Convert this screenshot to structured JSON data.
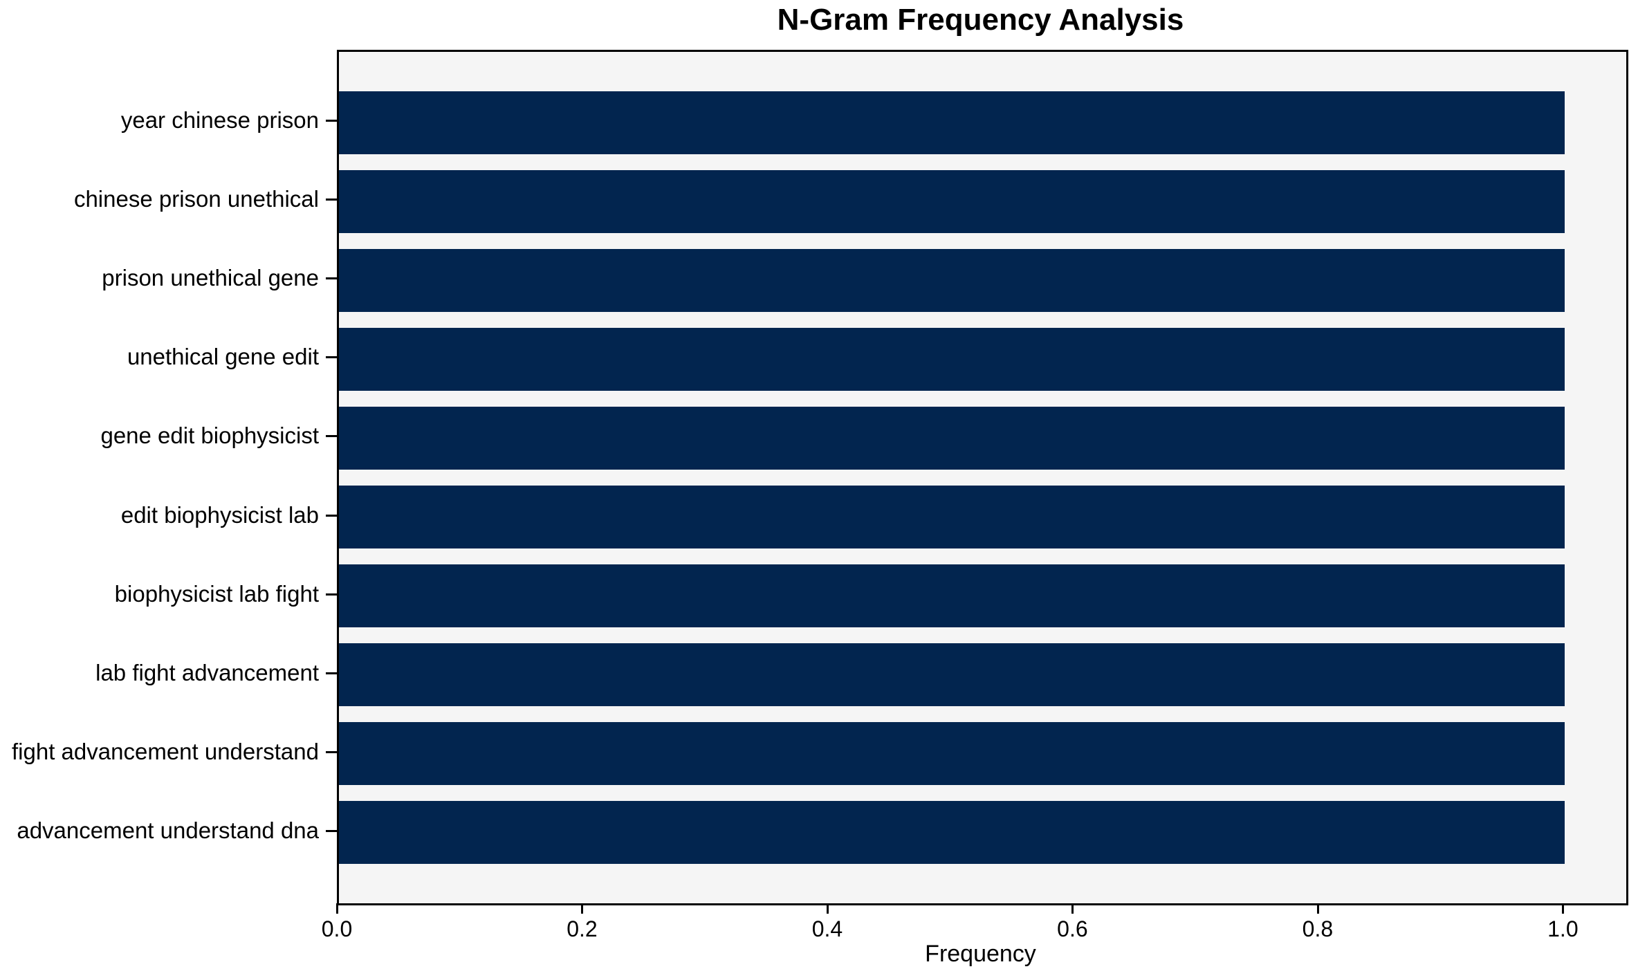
{
  "chart_data": {
    "type": "bar",
    "orientation": "horizontal",
    "title": "N-Gram Frequency Analysis",
    "xlabel": "Frequency",
    "ylabel": "",
    "categories": [
      "year chinese prison",
      "chinese prison unethical",
      "prison unethical gene",
      "unethical gene edit",
      "gene edit biophysicist",
      "edit biophysicist lab",
      "biophysicist lab fight",
      "lab fight advancement",
      "fight advancement understand",
      "advancement understand dna"
    ],
    "values": [
      1.0,
      1.0,
      1.0,
      1.0,
      1.0,
      1.0,
      1.0,
      1.0,
      1.0,
      1.0
    ],
    "x_ticks": [
      {
        "label": "0.0",
        "value": 0.0
      },
      {
        "label": "0.2",
        "value": 0.2
      },
      {
        "label": "0.4",
        "value": 0.4
      },
      {
        "label": "0.6",
        "value": 0.6
      },
      {
        "label": "0.8",
        "value": 0.8
      },
      {
        "label": "1.0",
        "value": 1.0
      }
    ],
    "xlim": [
      0,
      1.05
    ],
    "grid": false,
    "legend": "none",
    "colors": {
      "bar": "#02254f",
      "plot_background": "#f5f5f5",
      "figure_background": "#ffffff",
      "spine": "#000000",
      "text": "#000000"
    }
  }
}
